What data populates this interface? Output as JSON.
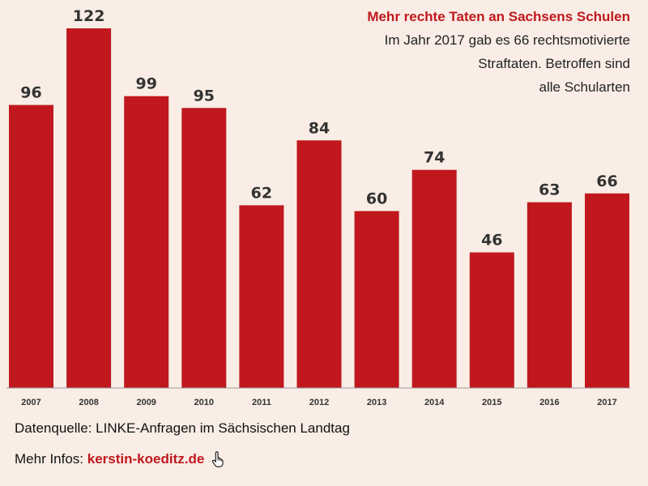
{
  "chart_data": {
    "type": "bar",
    "title": "Mehr rechte Taten an Sachsens Schulen",
    "subtitle_lines": [
      "Im Jahr 2017 gab es 66 rechtsmotivierte",
      "Straftaten. Betroffen sind",
      "alle Schularten"
    ],
    "categories": [
      "2007",
      "2008",
      "2009",
      "2010",
      "2011",
      "2012",
      "2013",
      "2014",
      "2015",
      "2016",
      "2017"
    ],
    "values": [
      96,
      122,
      99,
      95,
      62,
      84,
      60,
      74,
      46,
      63,
      66
    ],
    "xlabel": "",
    "ylabel": "",
    "ylim": [
      0,
      122
    ],
    "grid": false,
    "legend": "none",
    "bar_color": "#c0181d"
  },
  "footer": {
    "source_text": "Datenquelle: LINKE-Anfragen im Sächsischen Landtag",
    "infos_prefix": "Mehr Infos: ",
    "link_text": "kerstin-koeditz.de",
    "link_icon": "hand-pointer-icon"
  },
  "colors": {
    "background": "#f9ede6",
    "accent": "#c0181d"
  }
}
